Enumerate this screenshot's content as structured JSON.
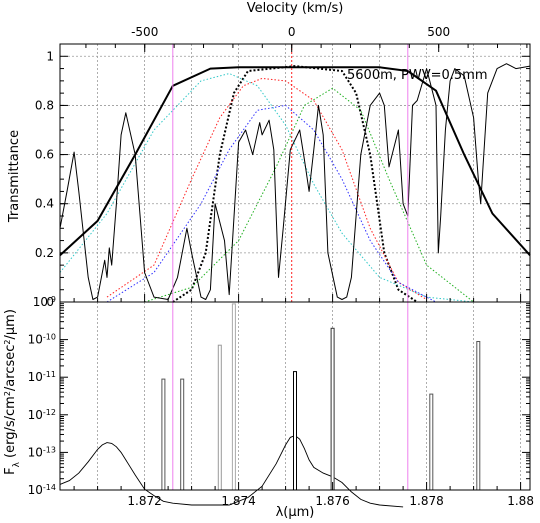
{
  "chart_data": [
    {
      "type": "line",
      "panel": "top",
      "title": "",
      "top_axis_label": "Velocity (km/s)",
      "top_ticks": [
        "-500",
        "0",
        "500"
      ],
      "top_tick_values": [
        -500,
        0,
        500
      ],
      "ylabel": "Transmittance",
      "y_ticks": [
        "0",
        "0.2",
        "0.4",
        "0.6",
        "0.8",
        "1"
      ],
      "ylim": [
        0,
        1.05
      ],
      "xlim": [
        1.8702,
        1.8802
      ],
      "grid": true,
      "annotation": "5600m, PWV=0.5mm",
      "colors": {
        "atmosphere": "#000000",
        "red": "#ff2020",
        "blue": "#3030ff",
        "green": "#20b020",
        "cyan": "#30c8c8",
        "magenta": "#ee80ee"
      },
      "series": [
        {
          "role": "broad-black-filter",
          "color": "#000000",
          "style": "solid",
          "width": 2,
          "x": [
            1.8702,
            1.871,
            1.8718,
            1.8726,
            1.8734,
            1.874,
            1.8746,
            1.8752,
            1.8758,
            1.8764,
            1.877,
            1.8776,
            1.8782,
            1.8788,
            1.8794,
            1.8802
          ],
          "y": [
            0.19,
            0.33,
            0.6,
            0.88,
            0.95,
            0.955,
            0.955,
            0.955,
            0.955,
            0.955,
            0.955,
            0.94,
            0.86,
            0.6,
            0.36,
            0.19
          ]
        },
        {
          "role": "narrow-black-dotted",
          "color": "#000000",
          "style": "dotted",
          "width": 2,
          "x": [
            1.8726,
            1.873,
            1.8733,
            1.8736,
            1.8739,
            1.8742,
            1.8752,
            1.8762,
            1.8765,
            1.8768,
            1.8771,
            1.8774,
            1.8778
          ],
          "y": [
            0.0,
            0.05,
            0.2,
            0.6,
            0.85,
            0.94,
            0.96,
            0.94,
            0.85,
            0.6,
            0.2,
            0.05,
            0.0
          ]
        },
        {
          "role": "red-dotted",
          "color": "#ff2020",
          "style": "dotted",
          "width": 1,
          "x": [
            1.8712,
            1.8722,
            1.873,
            1.8736,
            1.8741,
            1.8745,
            1.875,
            1.8756,
            1.8762,
            1.8768,
            1.8774,
            1.878
          ],
          "y": [
            0.02,
            0.15,
            0.5,
            0.75,
            0.88,
            0.91,
            0.9,
            0.82,
            0.62,
            0.3,
            0.08,
            0.01
          ]
        },
        {
          "role": "blue-dotted",
          "color": "#3030ff",
          "style": "dotted",
          "width": 1,
          "x": [
            1.8712,
            1.8722,
            1.8732,
            1.8738,
            1.8744,
            1.875,
            1.8756,
            1.8762,
            1.8768,
            1.8774,
            1.8782
          ],
          "y": [
            0.0,
            0.12,
            0.4,
            0.62,
            0.78,
            0.8,
            0.7,
            0.5,
            0.25,
            0.08,
            0.0
          ]
        },
        {
          "role": "green-dotted",
          "color": "#20b020",
          "style": "dotted",
          "width": 1,
          "x": [
            1.872,
            1.873,
            1.874,
            1.8748,
            1.8754,
            1.876,
            1.8766,
            1.8772,
            1.878,
            1.879
          ],
          "y": [
            0.0,
            0.06,
            0.25,
            0.55,
            0.8,
            0.87,
            0.78,
            0.5,
            0.15,
            0.0
          ]
        },
        {
          "role": "cyan-dotted",
          "color": "#30c8c8",
          "style": "dotted",
          "width": 1,
          "x": [
            1.8702,
            1.8712,
            1.8722,
            1.8732,
            1.8738,
            1.8744,
            1.875,
            1.8756,
            1.8762,
            1.877,
            1.878,
            1.879
          ],
          "y": [
            0.12,
            0.36,
            0.7,
            0.9,
            0.93,
            0.88,
            0.72,
            0.48,
            0.28,
            0.1,
            0.02,
            0.0
          ]
        },
        {
          "role": "atmospheric-transmission",
          "color": "#000000",
          "style": "solid",
          "width": 1,
          "x": [
            1.8702,
            1.87035,
            1.8705,
            1.8706,
            1.8708,
            1.8709,
            1.871,
            1.87115,
            1.8712,
            1.87125,
            1.8713,
            1.8714,
            1.8715,
            1.8716,
            1.8718,
            1.872,
            1.8722,
            1.8725,
            1.8727,
            1.8729,
            1.873,
            1.8732,
            1.8733,
            1.8734,
            1.8735,
            1.8737,
            1.8738,
            1.874,
            1.87415,
            1.8743,
            1.87445,
            1.8745,
            1.87465,
            1.87475,
            1.87485,
            1.87495,
            1.8751,
            1.8753,
            1.8754,
            1.8755,
            1.8756,
            1.8757,
            1.8758,
            1.8759,
            1.8761,
            1.8762,
            1.8763,
            1.8764,
            1.8766,
            1.8768,
            1.877,
            1.8771,
            1.8772,
            1.8774,
            1.8775,
            1.8776,
            1.8777,
            1.8778,
            1.878,
            1.8782,
            1.87825,
            1.8783,
            1.8784,
            1.8785,
            1.8786,
            1.8788,
            1.879,
            1.8791,
            1.87915,
            1.8792,
            1.8793,
            1.8795,
            1.8797,
            1.8799,
            1.8802
          ],
          "y": [
            0.3,
            0.45,
            0.61,
            0.45,
            0.1,
            0.01,
            0.02,
            0.17,
            0.1,
            0.22,
            0.15,
            0.4,
            0.68,
            0.77,
            0.6,
            0.12,
            0.02,
            0.01,
            0.1,
            0.3,
            0.2,
            0.02,
            0.01,
            0.05,
            0.4,
            0.25,
            0.03,
            0.65,
            0.7,
            0.6,
            0.73,
            0.68,
            0.74,
            0.62,
            0.1,
            0.3,
            0.62,
            0.7,
            0.58,
            0.45,
            0.62,
            0.8,
            0.68,
            0.2,
            0.02,
            0.01,
            0.02,
            0.1,
            0.6,
            0.8,
            0.85,
            0.8,
            0.55,
            0.7,
            0.4,
            0.35,
            0.8,
            0.82,
            0.95,
            0.8,
            0.2,
            0.35,
            0.7,
            0.9,
            0.95,
            0.92,
            0.75,
            0.5,
            0.4,
            0.55,
            0.85,
            0.95,
            0.97,
            0.95,
            0.96
          ]
        }
      ],
      "vlines": [
        {
          "x": 1.8726,
          "color": "#ee80ee",
          "style": "solid"
        },
        {
          "x": 1.87513,
          "color": "#ff2020",
          "style": "dotted"
        },
        {
          "x": 1.8776,
          "color": "#ee80ee",
          "style": "solid"
        }
      ]
    },
    {
      "type": "bar",
      "panel": "bottom",
      "xlabel": "λ(μm)",
      "ylabel": "F_λ (erg/s/cm²/arcsec²/μm)",
      "ylabel_parts": [
        "F",
        "λ",
        " (erg/s/cm",
        "2",
        "/arcsec",
        "2",
        "/μm)"
      ],
      "x_ticks": [
        "1.872",
        "1.874",
        "1.876",
        "1.878",
        "1.88"
      ],
      "x_tick_values": [
        1.872,
        1.874,
        1.876,
        1.878,
        1.88
      ],
      "y_ticks": [
        {
          "base": "10",
          "exp": "-14"
        },
        {
          "base": "10",
          "exp": "-13"
        },
        {
          "base": "10",
          "exp": "-12"
        },
        {
          "base": "10",
          "exp": "-11"
        },
        {
          "base": "10",
          "exp": "-10"
        },
        {
          "base": "10",
          "exp": "-9"
        }
      ],
      "y_log_range": [
        -14,
        -9
      ],
      "xlim": [
        1.8702,
        1.8802
      ],
      "scale": "log",
      "lines": [
        {
          "x": 1.8724,
          "log_flux": -11.05,
          "color": "#555555"
        },
        {
          "x": 1.8728,
          "log_flux": -11.05,
          "color": "#555555"
        },
        {
          "x": 1.8736,
          "log_flux": -10.15,
          "color": "#999999"
        },
        {
          "x": 1.8739,
          "log_flux": -9.05,
          "color": "#aaaaaa"
        },
        {
          "x": 1.8752,
          "log_flux": -10.85,
          "color": "#000000"
        },
        {
          "x": 1.876,
          "log_flux": -9.7,
          "color": "#333333"
        },
        {
          "x": 1.8781,
          "log_flux": -11.45,
          "color": "#555555"
        },
        {
          "x": 1.8791,
          "log_flux": -10.05,
          "color": "#555555"
        }
      ],
      "continuum": {
        "x": [
          1.8702,
          1.8704,
          1.8706,
          1.8708,
          1.871,
          1.8711,
          1.8712,
          1.8713,
          1.8714,
          1.8715,
          1.8716,
          1.8718,
          1.872,
          1.8722,
          1.8724,
          1.8726,
          1.873,
          1.8734,
          1.8738,
          1.8742,
          1.8745,
          1.8748,
          1.875,
          1.8751,
          1.8752,
          1.8753,
          1.8754,
          1.8755,
          1.8756,
          1.8758,
          1.876,
          1.8762,
          1.8764,
          1.8766,
          1.8768,
          1.877,
          1.8775
        ],
        "log_flux": [
          -13.85,
          -13.75,
          -13.55,
          -13.25,
          -12.92,
          -12.8,
          -12.74,
          -12.76,
          -12.85,
          -13.0,
          -13.2,
          -13.6,
          -13.98,
          -14.15,
          -14.3,
          -14.35,
          -14.4,
          -14.4,
          -14.4,
          -14.2,
          -13.9,
          -13.3,
          -12.8,
          -12.6,
          -12.55,
          -12.65,
          -12.9,
          -13.2,
          -13.4,
          -13.55,
          -13.65,
          -13.8,
          -14.05,
          -14.25,
          -14.35,
          -14.4,
          -14.45
        ]
      }
    }
  ]
}
